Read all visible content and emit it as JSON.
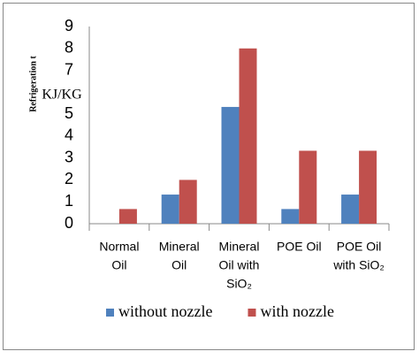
{
  "chart_data": {
    "type": "bar",
    "y_label": "Refrigeration t",
    "y_unit": "KJ/KG",
    "categories": [
      [
        "Normal",
        "Oil"
      ],
      [
        "Mineral",
        "Oil"
      ],
      [
        "Mineral",
        "Oil  with",
        "SiO₂"
      ],
      [
        "POE Oil"
      ],
      [
        "POE Oil",
        "with SiO₂"
      ]
    ],
    "series": [
      {
        "name": "without nozzle",
        "color": "#4f81bd",
        "values": [
          0,
          1.33,
          5.33,
          0.67,
          1.33
        ]
      },
      {
        "name": "with nozzle",
        "color": "#c0504d",
        "values": [
          0.67,
          2,
          8,
          3.33,
          3.33
        ]
      }
    ],
    "ylim": [
      0,
      9
    ],
    "yticks": [
      0,
      1,
      2,
      3,
      4,
      5,
      7,
      8,
      9
    ],
    "grid": false,
    "legend": "bottom"
  }
}
